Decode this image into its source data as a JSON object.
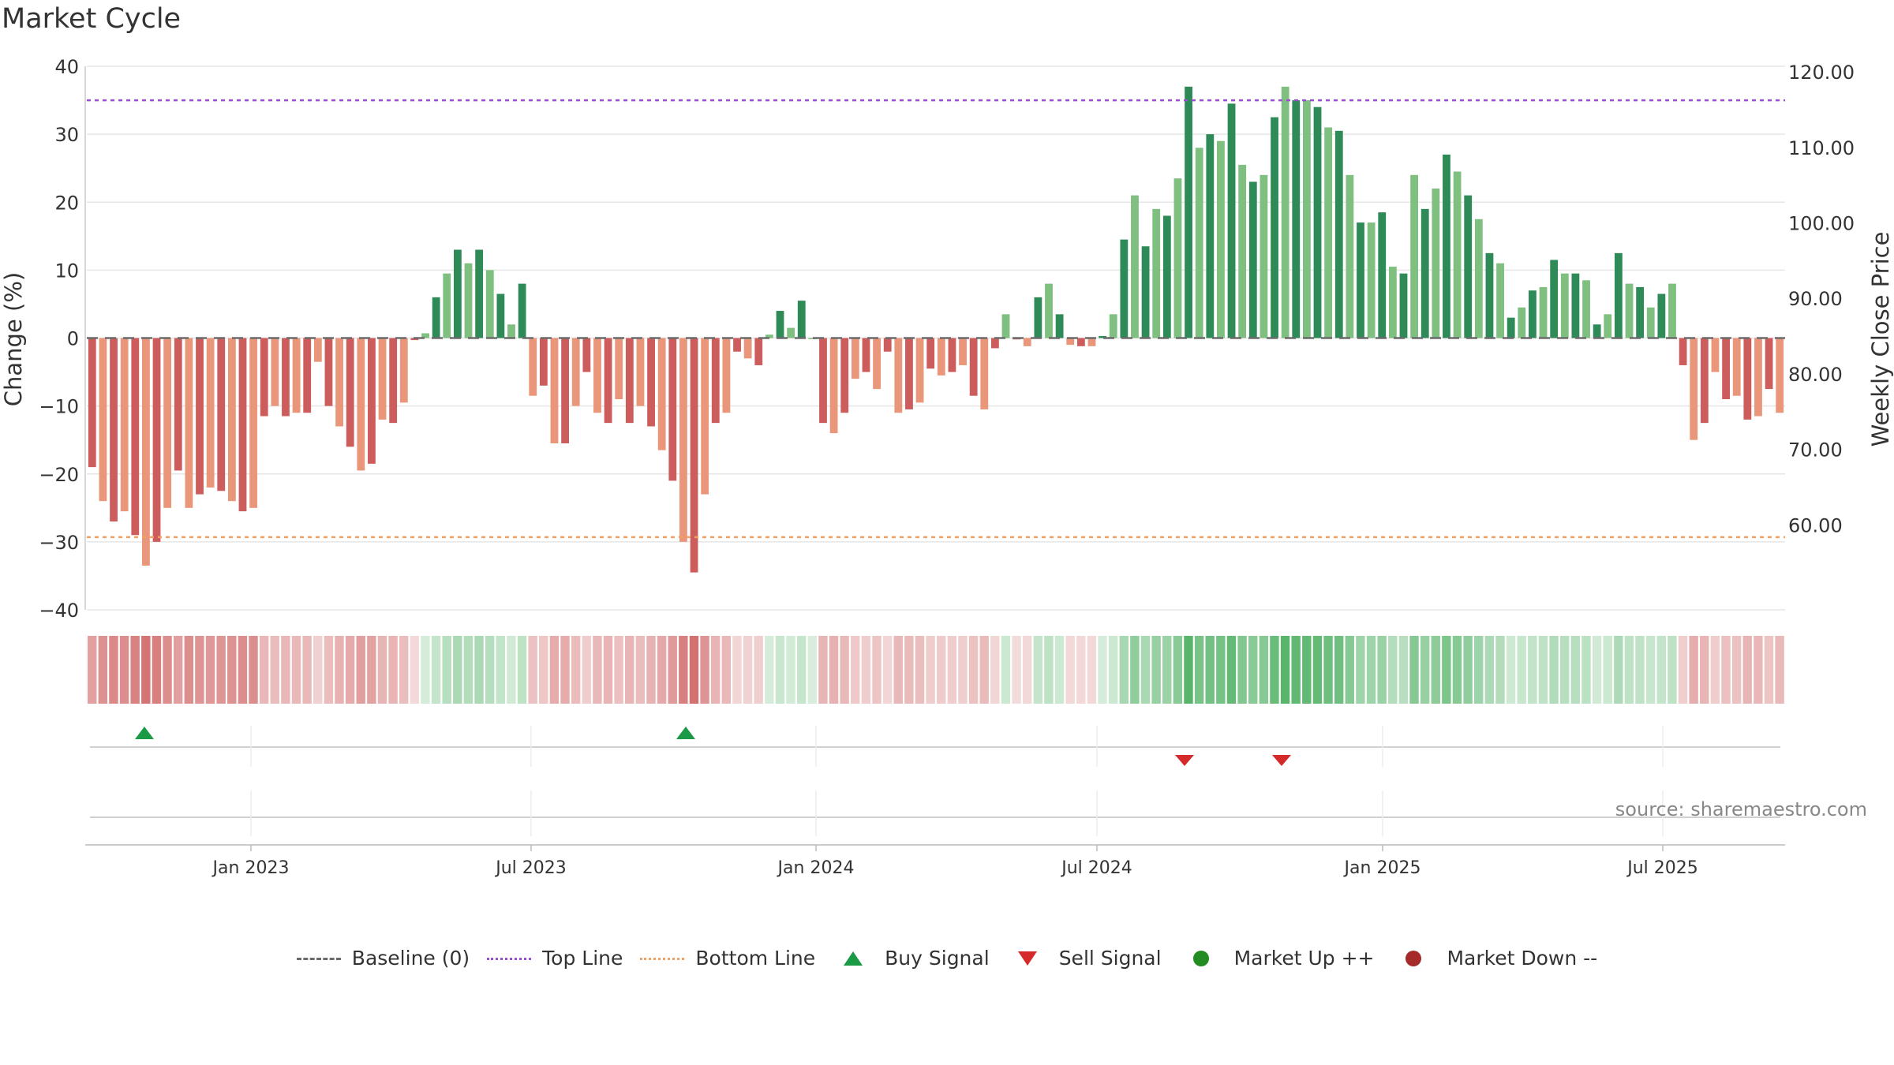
{
  "chart_data": {
    "type": "bar",
    "title": "Market Cycle",
    "ylabel": "Change (%)",
    "y2label": "Weekly Close Price",
    "ylim": [
      -40,
      40
    ],
    "y2lim": [
      50,
      120
    ],
    "yticks": [
      "40",
      "30",
      "20",
      "10",
      "0",
      "−10",
      "−20",
      "−30",
      "−40"
    ],
    "y2ticks": [
      "120.00",
      "110.00",
      "100.00",
      "90.00",
      "80.00",
      "70.00",
      "60.00"
    ],
    "xticks": [
      "Jan 2023",
      "Jul 2023",
      "Jan 2024",
      "Jul 2024",
      "Jan 2025",
      "Jul 2025"
    ],
    "top_line": 35,
    "bottom_line": -29.3,
    "source": "source: sharemaestro.com",
    "grid": true,
    "legend_placement": "bottom-center",
    "series": [
      {
        "name": "Change (%)",
        "values": [
          -19,
          -24,
          -27,
          -25.5,
          -29,
          -33.5,
          -30,
          -25,
          -19.5,
          -25,
          -23,
          -22,
          -22.5,
          -24,
          -25.5,
          -25,
          -11.5,
          -10,
          -11.5,
          -11,
          -11,
          -3.5,
          -10,
          -13,
          -16,
          -19.5,
          -18.5,
          -12,
          -12.5,
          -9.5,
          -0.3,
          0.7,
          6,
          9.5,
          13,
          11,
          13,
          10,
          6.5,
          2,
          8,
          -8.5,
          -7,
          -15.5,
          -15.5,
          -10,
          -5,
          -11,
          -12.5,
          -9,
          -12.5,
          -10,
          -13,
          -16.5,
          -21,
          -30,
          -34.5,
          -23,
          -12.5,
          -11,
          -2,
          -3,
          -4,
          0.5,
          4,
          1.5,
          5.5,
          0,
          -12.5,
          -14,
          -11,
          -6,
          -5,
          -7.5,
          -2,
          -11,
          -10.5,
          -9.5,
          -4.5,
          -5.5,
          -5,
          -4,
          -8.5,
          -10.5,
          -1.5,
          3.5,
          -0.2,
          -1.2,
          6,
          8,
          3.5,
          -1,
          -1.2,
          -1.2,
          0.3,
          3.5,
          14.5,
          21,
          13.5,
          19,
          18,
          23.5,
          37,
          28,
          30,
          29,
          34.5,
          25.5,
          23,
          24,
          32.5,
          37,
          35,
          35,
          34,
          31,
          30.5,
          24,
          17,
          17,
          18.5,
          10.5,
          9.5,
          24,
          19,
          22,
          27,
          24.5,
          21,
          17.5,
          12.5,
          11,
          3,
          4.5,
          7,
          7.5,
          11.5,
          9.5,
          9.5,
          8.5,
          2,
          3.5,
          12.5,
          8,
          7.5,
          4.5,
          6.5,
          8,
          -4,
          -15,
          -12.5,
          -5,
          -9,
          -8.5,
          -12,
          -11.5,
          -7.5,
          -11
        ]
      },
      {
        "name": "Weekly Close Price",
        "values": []
      }
    ],
    "signals": [
      {
        "type": "Buy Signal",
        "x_label": "Nov 2022"
      },
      {
        "type": "Buy Signal",
        "x_label": "Oct 2023"
      },
      {
        "type": "Sell Signal",
        "x_label": "Sep 2024"
      },
      {
        "type": "Sell Signal",
        "x_label": "Nov 2024"
      }
    ]
  },
  "legend": {
    "baseline": "Baseline (0)",
    "top_line": "Top Line",
    "bottom_line": "Bottom Line",
    "buy_signal": "Buy Signal",
    "sell_signal": "Sell Signal",
    "market_up": "Market Up ++",
    "market_down": "Market Down --"
  },
  "colors": {
    "up_dark": "#2e8b57",
    "up_light": "#7fbf7f",
    "down_dark": "#cd5c5c",
    "down_light": "#e9967a",
    "top_line": "#9c4fd0",
    "bottom_line": "#f0a060",
    "buy": "#1a9a45",
    "sell": "#d42a2a",
    "market_up": "#228b22",
    "market_down": "#a52a2a"
  }
}
